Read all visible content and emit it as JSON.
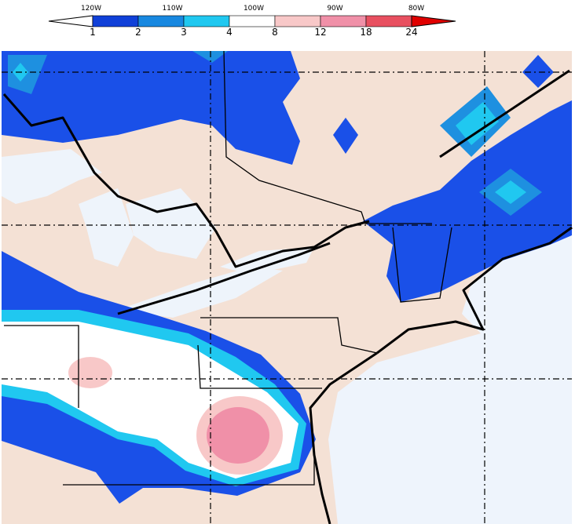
{
  "colorbar": {
    "labels": [
      "1",
      "2",
      "3",
      "4",
      "8",
      "12",
      "18",
      "24"
    ],
    "colors": [
      "#ffffff",
      "#1040d8",
      "#1888e0",
      "#20c8f0",
      "#ffffff",
      "#f8c8c8",
      "#f090a8",
      "#e85060",
      "#e00000"
    ]
  },
  "longitudes": [
    "120W",
    "110W",
    "100W",
    "90W",
    "80W"
  ]
}
